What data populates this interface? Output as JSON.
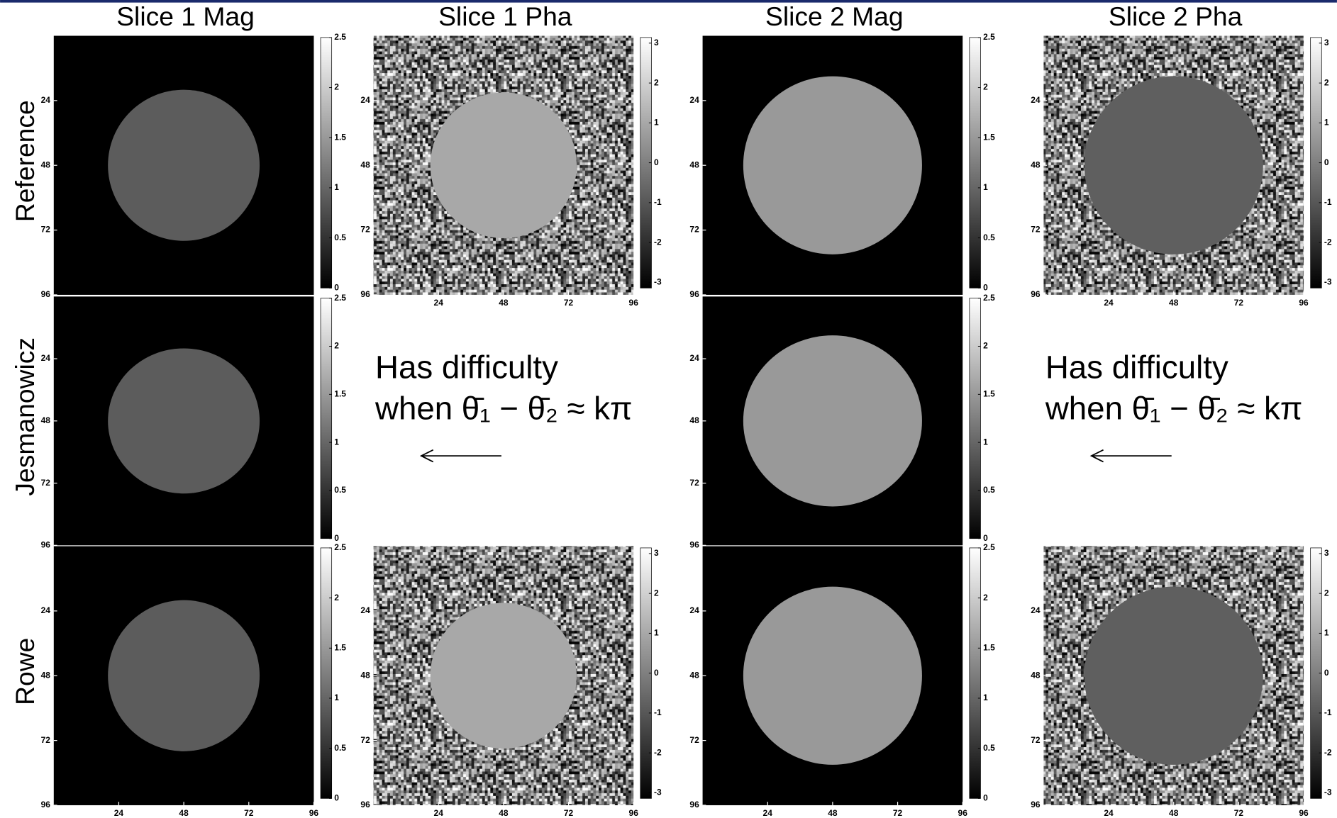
{
  "columns": [
    "Slice 1 Mag",
    "Slice 1 Pha",
    "Slice 2 Mag",
    "Slice 2 Pha"
  ],
  "rows": [
    "Reference",
    "Jesmanowicz",
    "Rowe"
  ],
  "axis_lim": [
    0,
    96
  ],
  "axis_ticks": [
    24,
    48,
    72,
    96
  ],
  "colorbars": {
    "mag": {
      "lim": [
        0,
        2.5
      ],
      "ticks": [
        0,
        0.5,
        1,
        1.5,
        2,
        2.5
      ]
    },
    "pha": {
      "lim": [
        -3.1416,
        3.1416
      ],
      "ticks": [
        -3,
        -2,
        -1,
        0,
        1,
        2,
        3
      ]
    }
  },
  "panels": [
    {
      "row": 0,
      "col": 0,
      "kind": "mag",
      "x_axis": false,
      "circle": {
        "cx": 48,
        "cy": 48,
        "r": 28,
        "value": 0.9
      }
    },
    {
      "row": 0,
      "col": 1,
      "kind": "pha",
      "x_axis": true,
      "circle": {
        "cx": 48,
        "cy": 48,
        "r": 27,
        "value": 1.0
      }
    },
    {
      "row": 0,
      "col": 2,
      "kind": "mag",
      "x_axis": false,
      "circle": {
        "cx": 48,
        "cy": 48,
        "r": 33,
        "value": 1.5
      }
    },
    {
      "row": 0,
      "col": 3,
      "kind": "pha",
      "x_axis": true,
      "circle": {
        "cx": 48,
        "cy": 48,
        "r": 33,
        "value": -0.8
      }
    },
    {
      "row": 1,
      "col": 0,
      "kind": "mag",
      "x_axis": false,
      "circle": {
        "cx": 48,
        "cy": 48,
        "r": 28,
        "value": 0.9
      }
    },
    {
      "row": 1,
      "col": 2,
      "kind": "mag",
      "x_axis": false,
      "circle": {
        "cx": 48,
        "cy": 48,
        "r": 33,
        "value": 1.5
      }
    },
    {
      "row": 2,
      "col": 0,
      "kind": "mag",
      "x_axis": true,
      "circle": {
        "cx": 48,
        "cy": 48,
        "r": 28,
        "value": 0.9
      }
    },
    {
      "row": 2,
      "col": 1,
      "kind": "pha",
      "x_axis": true,
      "circle": {
        "cx": 48,
        "cy": 48,
        "r": 27,
        "value": 1.0
      }
    },
    {
      "row": 2,
      "col": 2,
      "kind": "mag",
      "x_axis": true,
      "circle": {
        "cx": 48,
        "cy": 48,
        "r": 33,
        "value": 1.5
      }
    },
    {
      "row": 2,
      "col": 3,
      "kind": "pha",
      "x_axis": true,
      "circle": {
        "cx": 48,
        "cy": 48,
        "r": 33,
        "value": -0.8
      }
    }
  ],
  "annotations": [
    {
      "row": 1,
      "col": 1,
      "lines": [
        "Has difficulty",
        "when θ̄₁ − θ̄₂ ≈ kπ"
      ]
    },
    {
      "row": 1,
      "col": 3,
      "lines": [
        "Has difficulty",
        "when θ̄₁ − θ̄₂ ≈ kπ"
      ]
    }
  ]
}
